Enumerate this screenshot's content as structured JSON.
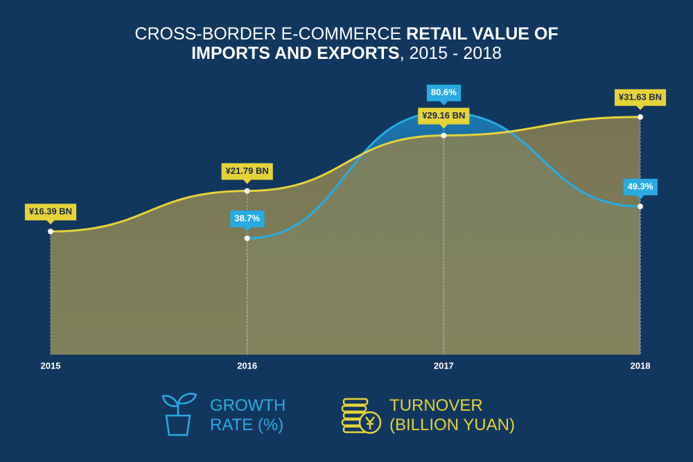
{
  "chart_data": {
    "type": "area-line",
    "title": [
      [
        {
          "text": "CROSS-BORDER E-COMMERCE",
          "bold": false
        },
        {
          "text": "RETAIL VALUE OF",
          "bold": true
        }
      ],
      [
        {
          "text": "IMPORTS AND EXPORTS",
          "bold": true
        },
        {
          "text": ", 2015 - 2018",
          "bold": false
        }
      ]
    ],
    "categories": [
      "2015",
      "2016",
      "2017",
      "2018"
    ],
    "series": [
      {
        "name": "GROWTH RATE (%)",
        "color": "#29abe2",
        "axis": "y2",
        "values": [
          null,
          38.7,
          80.6,
          49.3
        ],
        "value_labels": [
          null,
          "38.7%",
          "80.6%",
          "49.3%"
        ]
      },
      {
        "name": "TURNOVER (BILLION YUAN)",
        "color": "#e5d33a",
        "values": [
          16.39,
          21.79,
          29.16,
          31.63
        ],
        "value_labels": [
          "¥16.39 BN",
          "¥21.79 BN",
          "¥29.16 BN",
          "¥31.63 BN"
        ]
      }
    ],
    "ylim": [
      0,
      40
    ],
    "y2lim": [
      0,
      100
    ]
  }
}
